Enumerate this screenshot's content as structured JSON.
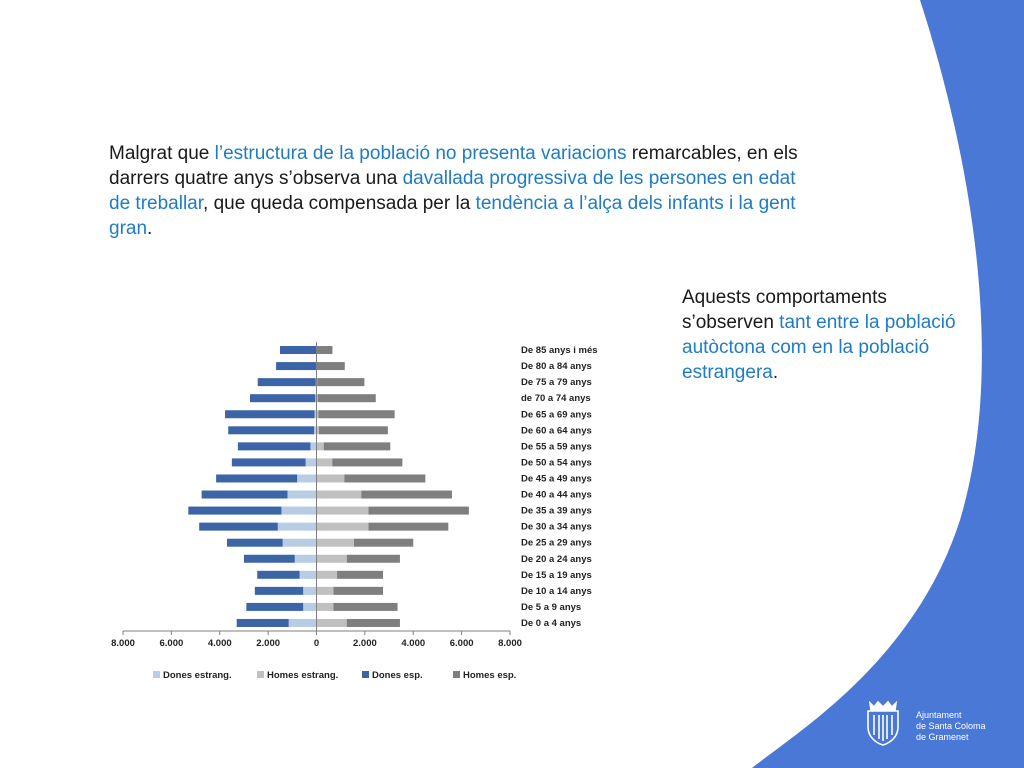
{
  "text": {
    "main": [
      {
        "t": "Malgrat que ",
        "hl": false
      },
      {
        "t": "l’estructura de la població no presenta variacions",
        "hl": true
      },
      {
        "t": " remarcables, en els darrers quatre anys s’observa una ",
        "hl": false
      },
      {
        "t": "davallada progressiva de les persones en edat de treballar",
        "hl": true
      },
      {
        "t": ", que queda compensada per la ",
        "hl": false
      },
      {
        "t": "tendència a l’alça dels infants i la gent gran",
        "hl": true
      },
      {
        "t": ".",
        "hl": false
      }
    ],
    "side": [
      {
        "t": "Aquests comportaments s’observen ",
        "hl": false
      },
      {
        "t": "tant entre la població autòctona com en la població estrangera",
        "hl": true
      },
      {
        "t": ".",
        "hl": false
      }
    ]
  },
  "logo": {
    "line1": "Ajuntament",
    "line2": "de Santa Coloma",
    "line3": "de Gramenet"
  },
  "colors": {
    "accent_blue": "#4a78d6",
    "highlight_text": "#1f7cc4",
    "dones_estrang": "#b7cde6",
    "homes_estrang": "#c0c0c0",
    "dones_esp": "#3b65a6",
    "homes_esp": "#7f7f7f"
  },
  "chart_data": {
    "type": "bar",
    "orientation": "horizontal-pyramid",
    "stacked": true,
    "categories": [
      "De 0 a 4 anys",
      "De 5 a 9 anys",
      "De 10 a 14 anys",
      "De 15 a 19 anys",
      "De 20 a 24 anys",
      "De 25 a 29 anys",
      "De 30 a 34 anys",
      "De 35 a 39 anys",
      "De 40 a 44 anys",
      "De 45 a 49 anys",
      "De 50 a 54 anys",
      "De 55 a 59 anys",
      "De 60 a 64 anys",
      "De 65 a 69 anys",
      "de 70 a 74 anys",
      "De 75 a 79 anys",
      "De 80 a 84 anys",
      "De 85 anys i més"
    ],
    "series": [
      {
        "name": "Dones estrang.",
        "side": "left",
        "color": "#b7cde6",
        "values": [
          1150,
          550,
          550,
          700,
          900,
          1400,
          1600,
          1450,
          1200,
          800,
          450,
          250,
          100,
          80,
          50,
          30,
          20,
          10
        ]
      },
      {
        "name": "Homes estrang.",
        "side": "right",
        "color": "#c0c0c0",
        "values": [
          1250,
          700,
          700,
          850,
          1250,
          1550,
          2150,
          2150,
          1850,
          1150,
          650,
          300,
          100,
          80,
          50,
          30,
          20,
          10
        ]
      },
      {
        "name": "Dones esp.",
        "side": "left",
        "color": "#3b65a6",
        "values": [
          2150,
          2350,
          2000,
          1750,
          2100,
          2300,
          3250,
          3850,
          3550,
          3350,
          3050,
          3000,
          3550,
          3700,
          2700,
          2400,
          1650,
          1500
        ]
      },
      {
        "name": "Homes esp.",
        "side": "right",
        "color": "#7f7f7f",
        "values": [
          2200,
          2650,
          2050,
          1900,
          2200,
          2450,
          3300,
          4150,
          3750,
          3350,
          2900,
          2750,
          2850,
          3150,
          2400,
          1950,
          1150,
          650
        ]
      }
    ],
    "xlim": [
      -8000,
      8000
    ],
    "xticks": [
      -8000,
      -6000,
      -4000,
      -2000,
      0,
      2000,
      4000,
      6000,
      8000
    ],
    "xtick_labels": [
      "8.000",
      "6.000",
      "4.000",
      "2.000",
      "0",
      "2.000",
      "4.000",
      "6.000",
      "8.000"
    ],
    "legend_position": "bottom",
    "grid": false,
    "title": "",
    "xlabel": "",
    "ylabel": ""
  }
}
